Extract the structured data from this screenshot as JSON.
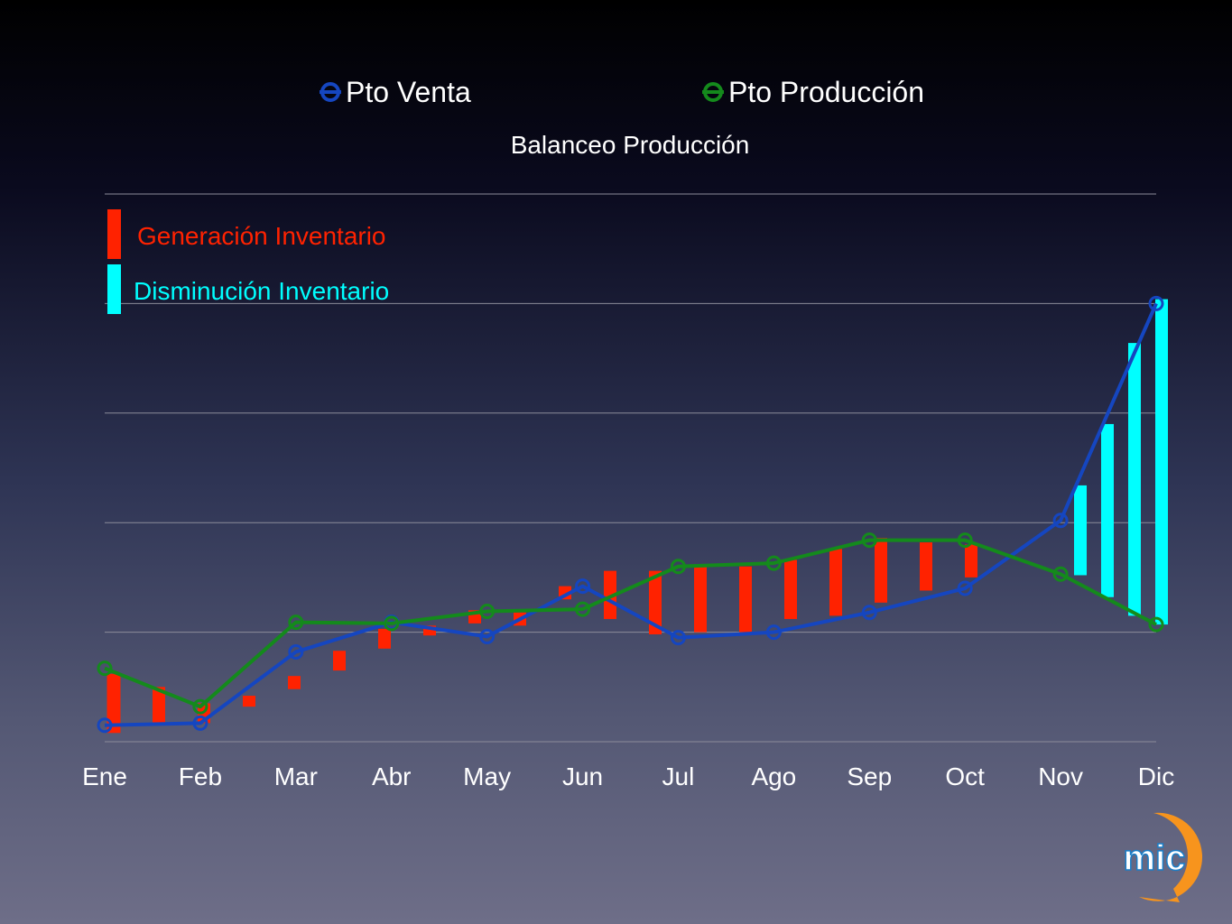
{
  "colors": {
    "sales": "#1546c0",
    "production": "#148a1c",
    "increase": "#ff2200",
    "decrease": "#00ffff",
    "gridline": "#8c8c9a",
    "text": "#ffffff"
  },
  "logo": {
    "text": "mic",
    "background": "#f7941d"
  },
  "chart_data": {
    "type": "line",
    "title": "Balanceo Producción",
    "xlabel": "",
    "ylabel": "",
    "ylim": [
      0,
      5
    ],
    "grid": true,
    "legend_position": "top",
    "categories": [
      "Ene",
      "Feb",
      "Mar",
      "Abr",
      "May",
      "Jun",
      "Jul",
      "Ago",
      "Sep",
      "Oct",
      "Nov",
      "Dic"
    ],
    "series": [
      {
        "name": "Pto Venta",
        "color": "#1546c0",
        "values": [
          0.15,
          0.17,
          0.82,
          1.09,
          0.96,
          1.42,
          0.95,
          1.0,
          1.18,
          1.4,
          2.02,
          4.0
        ]
      },
      {
        "name": "Pto Producción",
        "color": "#148a1c",
        "values": [
          0.67,
          0.32,
          1.09,
          1.08,
          1.19,
          1.21,
          1.6,
          1.63,
          1.84,
          1.84,
          1.53,
          1.07
        ]
      }
    ],
    "annotations": {
      "increase_label": "Generación Inventario",
      "decrease_label": "Disminución Inventario",
      "increase_bars": [
        [
          0.08,
          0.62
        ],
        [
          0.17,
          0.5
        ],
        [
          0.17,
          0.35
        ],
        [
          0.32,
          0.42
        ],
        [
          0.48,
          0.6
        ],
        [
          0.65,
          0.83
        ],
        [
          0.85,
          1.03
        ],
        [
          0.97,
          1.06
        ],
        [
          1.08,
          1.2
        ],
        [
          1.06,
          1.18
        ],
        [
          1.3,
          1.42
        ],
        [
          1.12,
          1.56
        ],
        [
          0.98,
          1.56
        ],
        [
          1.0,
          1.6
        ],
        [
          1.0,
          1.6
        ],
        [
          1.12,
          1.66
        ],
        [
          1.15,
          1.76
        ],
        [
          1.27,
          1.86
        ],
        [
          1.38,
          1.82
        ],
        [
          1.5,
          1.8
        ]
      ],
      "decrease_bars": [
        [
          1.52,
          2.34
        ],
        [
          1.32,
          2.9
        ],
        [
          1.15,
          3.64
        ],
        [
          1.07,
          4.04
        ]
      ]
    }
  }
}
